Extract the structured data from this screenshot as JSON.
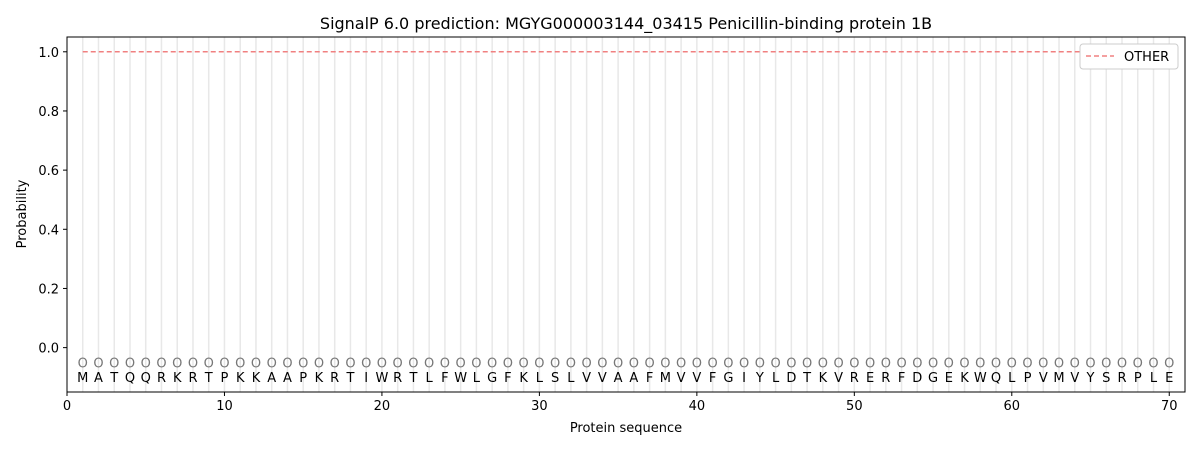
{
  "chart_data": {
    "type": "line",
    "title": "SignalP 6.0 prediction: MGYG000003144_03415 Penicillin-binding protein 1B",
    "xlabel": "Protein sequence",
    "ylabel": "Probability",
    "xlim": [
      0,
      71
    ],
    "ylim": [
      -0.15,
      1.05
    ],
    "xticks": [
      0,
      10,
      20,
      30,
      40,
      50,
      60,
      70
    ],
    "yticks": [
      0.0,
      0.2,
      0.4,
      0.6,
      0.8,
      1.0
    ],
    "ytick_labels": [
      "0.0",
      "0.2",
      "0.4",
      "0.6",
      "0.8",
      "1.0"
    ],
    "sequence": [
      "M",
      "A",
      "T",
      "Q",
      "Q",
      "R",
      "K",
      "R",
      "T",
      "P",
      "K",
      "K",
      "A",
      "A",
      "P",
      "K",
      "R",
      "T",
      "I",
      "W",
      "R",
      "T",
      "L",
      "F",
      "W",
      "L",
      "G",
      "F",
      "K",
      "L",
      "S",
      "L",
      "V",
      "V",
      "A",
      "A",
      "F",
      "M",
      "V",
      "V",
      "F",
      "G",
      "I",
      "Y",
      "L",
      "D",
      "T",
      "K",
      "V",
      "R",
      "E",
      "R",
      "F",
      "D",
      "G",
      "E",
      "K",
      "W",
      "Q",
      "L",
      "P",
      "V",
      "M",
      "V",
      "Y",
      "S",
      "R",
      "P",
      "L",
      "E"
    ],
    "predicted_labels": "O",
    "series": [
      {
        "name": "OTHER",
        "color": "#f08080",
        "style": "dashed",
        "x_range": [
          1,
          70
        ],
        "value": 1.0
      }
    ],
    "legend_placement": "top-right",
    "grid": "vertical lines at each residue"
  }
}
